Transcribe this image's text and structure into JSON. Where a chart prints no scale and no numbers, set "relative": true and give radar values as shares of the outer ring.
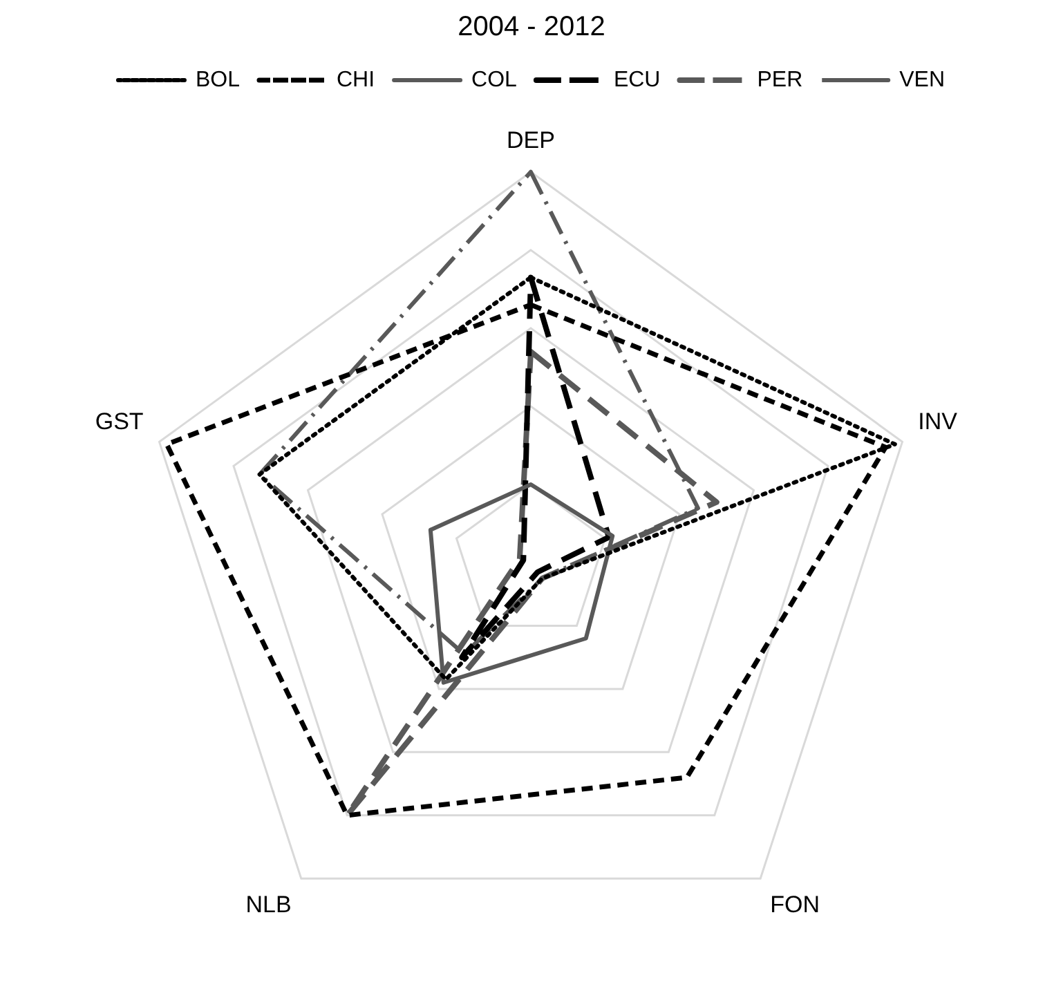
{
  "chart_data": {
    "type": "radar",
    "title": "2004 - 2012",
    "relative": true,
    "legend": "top",
    "grid": true,
    "marker": "none",
    "categories": [
      "DEP",
      "INV",
      "FON",
      "NLB",
      "GST"
    ],
    "series": [
      {
        "name": "BOL",
        "color": "#000000",
        "line_style": "dotted",
        "values": [
          0.73,
          0.98,
          0.05,
          0.37,
          0.73
        ]
      },
      {
        "name": "CHI",
        "color": "#000000",
        "line_style": "dashed",
        "values": [
          0.66,
          0.955,
          0.68,
          0.8,
          0.98
        ]
      },
      {
        "name": "COL",
        "color": "#595959",
        "line_style": "solid",
        "values": [
          0.2,
          0.22,
          0.24,
          0.38,
          0.27
        ]
      },
      {
        "name": "ECU",
        "color": "#000000",
        "line_style": "longdash",
        "values": [
          0.73,
          0.21,
          0.03,
          0.3,
          0.02
        ]
      },
      {
        "name": "PER",
        "color": "#595959",
        "line_style": "longdash",
        "values": [
          0.54,
          0.5,
          0.05,
          0.8,
          0.03
        ]
      },
      {
        "name": "VEN",
        "color": "#595959",
        "line_style": "dashdot",
        "values": [
          1,
          0.45,
          0.05,
          0.29,
          0.73
        ]
      }
    ]
  }
}
